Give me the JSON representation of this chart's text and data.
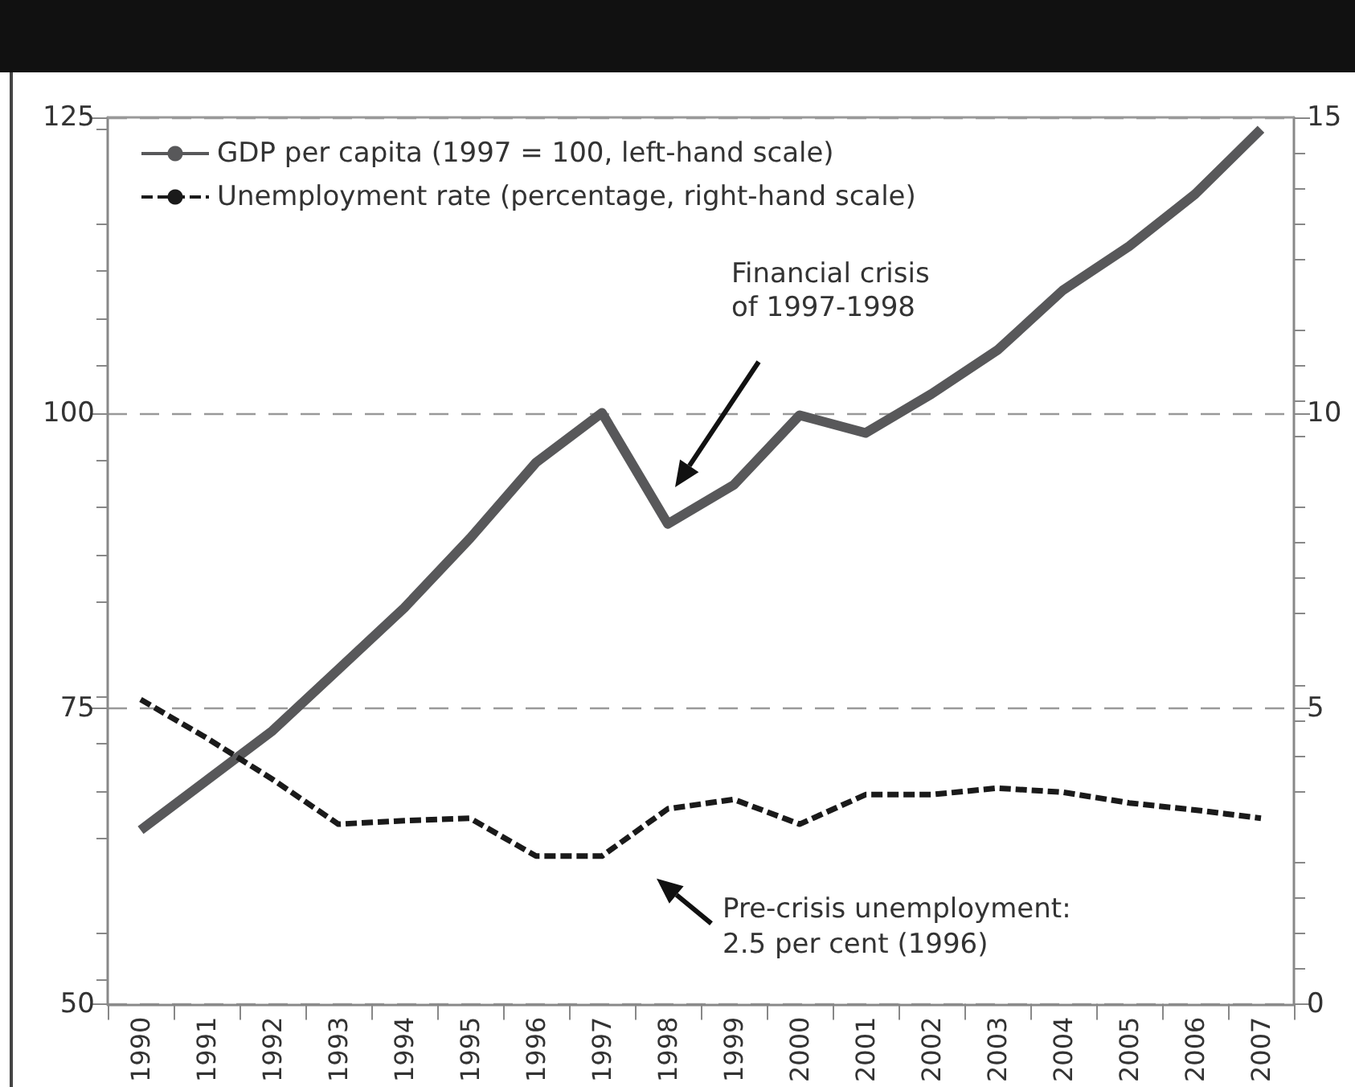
{
  "chart_data": {
    "type": "line",
    "categories": [
      "1990",
      "1991",
      "1992",
      "1993",
      "1994",
      "1995",
      "1996",
      "1997",
      "1998",
      "1999",
      "2000",
      "2001",
      "2002",
      "2003",
      "2004",
      "2005",
      "2006",
      "2007"
    ],
    "series": [
      {
        "name": "GDP per capita (1997 = 100, left-hand scale)",
        "color": "#58585a",
        "line_style": "solid",
        "values": [
          64.7,
          68.9,
          73.1,
          78.3,
          83.5,
          89.4,
          95.8,
          100,
          90.6,
          93.9,
          99.8,
          98.3,
          101.6,
          105.3,
          110.4,
          114.1,
          118.5,
          124
        ]
      },
      {
        "name": "Unemployment rate (percentage, right-hand scale)",
        "color": "#1a1a1a",
        "line_style": "dashed",
        "axis": "y2",
        "values": [
          5.15,
          4.5,
          3.8,
          3.04,
          3.1,
          3.14,
          2.5,
          2.5,
          3.3,
          3.46,
          3.04,
          3.54,
          3.54,
          3.65,
          3.58,
          3.4,
          3.28,
          3.14
        ]
      }
    ],
    "ylim": [
      50,
      125
    ],
    "yticks": [
      50,
      75,
      100,
      125
    ],
    "y2lim": [
      0,
      15
    ],
    "y2ticks": [
      0,
      5,
      10,
      15
    ],
    "grid": "y",
    "legend": "top left",
    "marker": "none",
    "annotations": [
      "Financial crisis\nof 1997-1998",
      "Pre-crisis unemployment:\n2.5 per cent (1996)"
    ]
  }
}
